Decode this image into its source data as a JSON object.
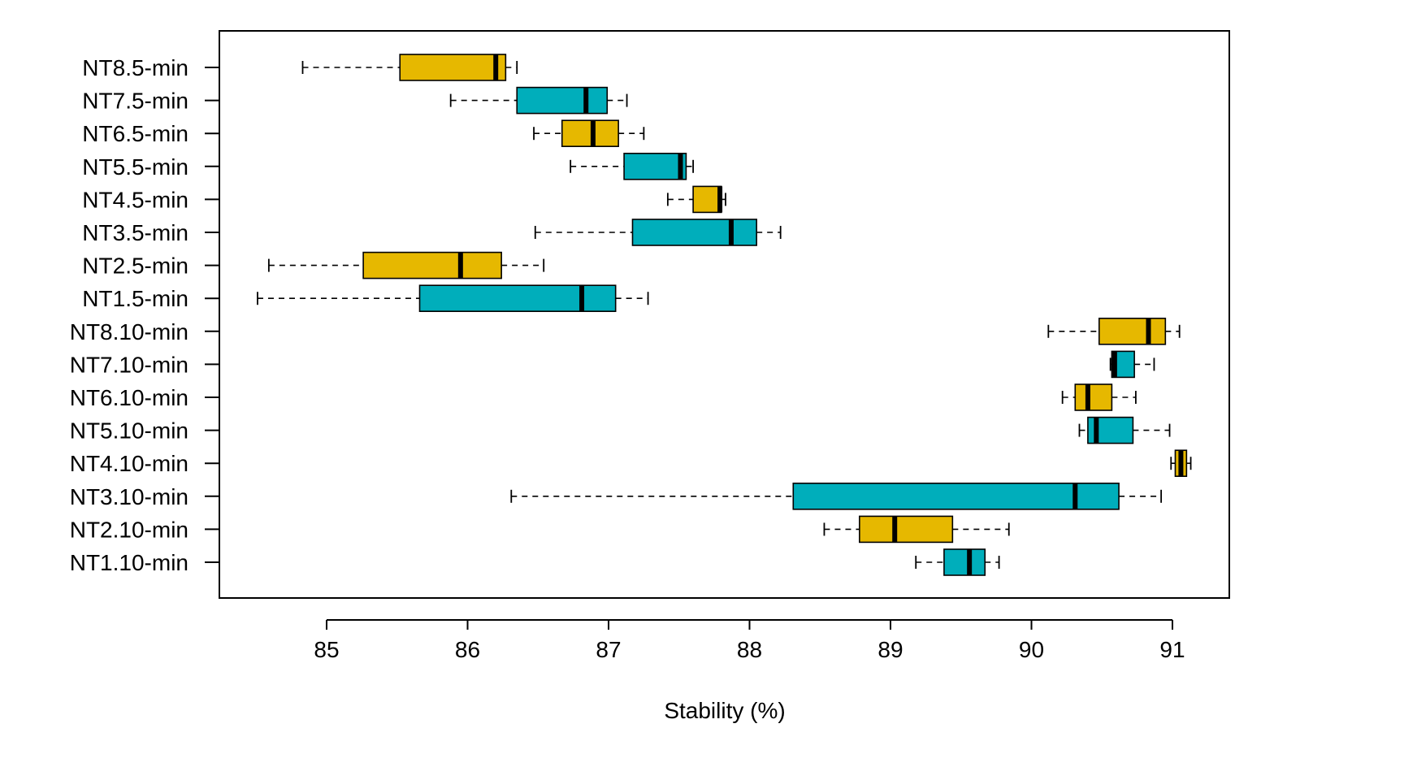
{
  "chart_data": {
    "type": "boxplot",
    "orientation": "horizontal",
    "title": "",
    "xlabel": "Stability (%)",
    "ylabel": "",
    "xlim": [
      84.4,
      91.4
    ],
    "x_ticks": [
      85,
      86,
      87,
      88,
      89,
      90,
      91
    ],
    "grid": false,
    "legend": "none",
    "colors": {
      "gold": "#E6B800",
      "teal": "#00AEBB",
      "stroke": "#000000"
    },
    "categories": [
      "NT8.5-min",
      "NT7.5-min",
      "NT6.5-min",
      "NT5.5-min",
      "NT4.5-min",
      "NT3.5-min",
      "NT2.5-min",
      "NT1.5-min",
      "NT8.10-min",
      "NT7.10-min",
      "NT6.10-min",
      "NT5.10-min",
      "NT4.10-min",
      "NT3.10-min",
      "NT2.10-min",
      "NT1.10-min"
    ],
    "boxes": [
      {
        "label": "NT8.5-min",
        "color": "gold",
        "min": 84.83,
        "q1": 85.52,
        "median": 86.2,
        "q3": 86.27,
        "max": 86.35
      },
      {
        "label": "NT7.5-min",
        "color": "teal",
        "min": 85.88,
        "q1": 86.35,
        "median": 86.84,
        "q3": 86.99,
        "max": 87.13
      },
      {
        "label": "NT6.5-min",
        "color": "gold",
        "min": 86.47,
        "q1": 86.67,
        "median": 86.89,
        "q3": 87.07,
        "max": 87.25
      },
      {
        "label": "NT5.5-min",
        "color": "teal",
        "min": 86.73,
        "q1": 87.11,
        "median": 87.51,
        "q3": 87.55,
        "max": 87.6
      },
      {
        "label": "NT4.5-min",
        "color": "gold",
        "min": 87.42,
        "q1": 87.6,
        "median": 87.79,
        "q3": 87.8,
        "max": 87.83
      },
      {
        "label": "NT3.5-min",
        "color": "teal",
        "min": 86.48,
        "q1": 87.17,
        "median": 87.87,
        "q3": 88.05,
        "max": 88.22
      },
      {
        "label": "NT2.5-min",
        "color": "gold",
        "min": 84.59,
        "q1": 85.26,
        "median": 85.95,
        "q3": 86.24,
        "max": 86.54
      },
      {
        "label": "NT1.5-min",
        "color": "teal",
        "min": 84.51,
        "q1": 85.66,
        "median": 86.81,
        "q3": 87.05,
        "max": 87.28
      },
      {
        "label": "NT8.10-min",
        "color": "gold",
        "min": 90.12,
        "q1": 90.48,
        "median": 90.83,
        "q3": 90.95,
        "max": 91.05
      },
      {
        "label": "NT7.10-min",
        "color": "teal",
        "min": 90.56,
        "q1": 90.57,
        "median": 90.59,
        "q3": 90.73,
        "max": 90.87
      },
      {
        "label": "NT6.10-min",
        "color": "gold",
        "min": 90.22,
        "q1": 90.31,
        "median": 90.4,
        "q3": 90.57,
        "max": 90.74
      },
      {
        "label": "NT5.10-min",
        "color": "teal",
        "min": 90.34,
        "q1": 90.4,
        "median": 90.46,
        "q3": 90.72,
        "max": 90.98
      },
      {
        "label": "NT4.10-min",
        "color": "gold",
        "min": 90.99,
        "q1": 91.02,
        "median": 91.06,
        "q3": 91.1,
        "max": 91.13
      },
      {
        "label": "NT3.10-min",
        "color": "teal",
        "min": 86.31,
        "q1": 88.31,
        "median": 90.31,
        "q3": 90.62,
        "max": 90.92
      },
      {
        "label": "NT2.10-min",
        "color": "gold",
        "min": 88.53,
        "q1": 88.78,
        "median": 89.03,
        "q3": 89.44,
        "max": 89.84
      },
      {
        "label": "NT1.10-min",
        "color": "teal",
        "min": 89.18,
        "q1": 89.38,
        "median": 89.56,
        "q3": 89.67,
        "max": 89.77
      }
    ]
  }
}
